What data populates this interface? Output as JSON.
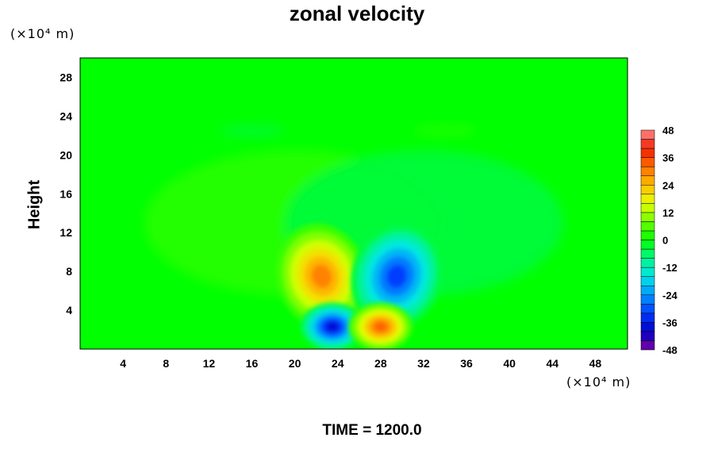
{
  "chart_data": {
    "type": "heatmap",
    "title": "zonal velocity",
    "ylabel": "Height",
    "x_unit_label": "(×10⁴ m)",
    "y_unit_label": "(×10⁴ m)",
    "xlim": [
      0,
      51
    ],
    "ylim": [
      0,
      30
    ],
    "x_ticks": [
      4,
      8,
      12,
      16,
      20,
      24,
      28,
      32,
      36,
      40,
      44,
      48
    ],
    "y_ticks": [
      4,
      8,
      12,
      16,
      20,
      24,
      28
    ],
    "colorbar": {
      "min": -48,
      "max": 48,
      "step": 4,
      "labels": [
        48,
        36,
        24,
        12,
        0,
        -12,
        -24,
        -36,
        -48
      ]
    },
    "features": [
      {
        "label": "upper positive lobe",
        "x": 22.5,
        "y": 7.5,
        "value": 30
      },
      {
        "label": "upper negative lobe",
        "x": 29.5,
        "y": 7.5,
        "value": -32
      },
      {
        "label": "lower negative core",
        "x": 23.5,
        "y": 2.3,
        "value": -38
      },
      {
        "label": "lower positive core",
        "x": 28.0,
        "y": 2.3,
        "value": 33
      }
    ],
    "footer": "TIME = 1200.0"
  }
}
